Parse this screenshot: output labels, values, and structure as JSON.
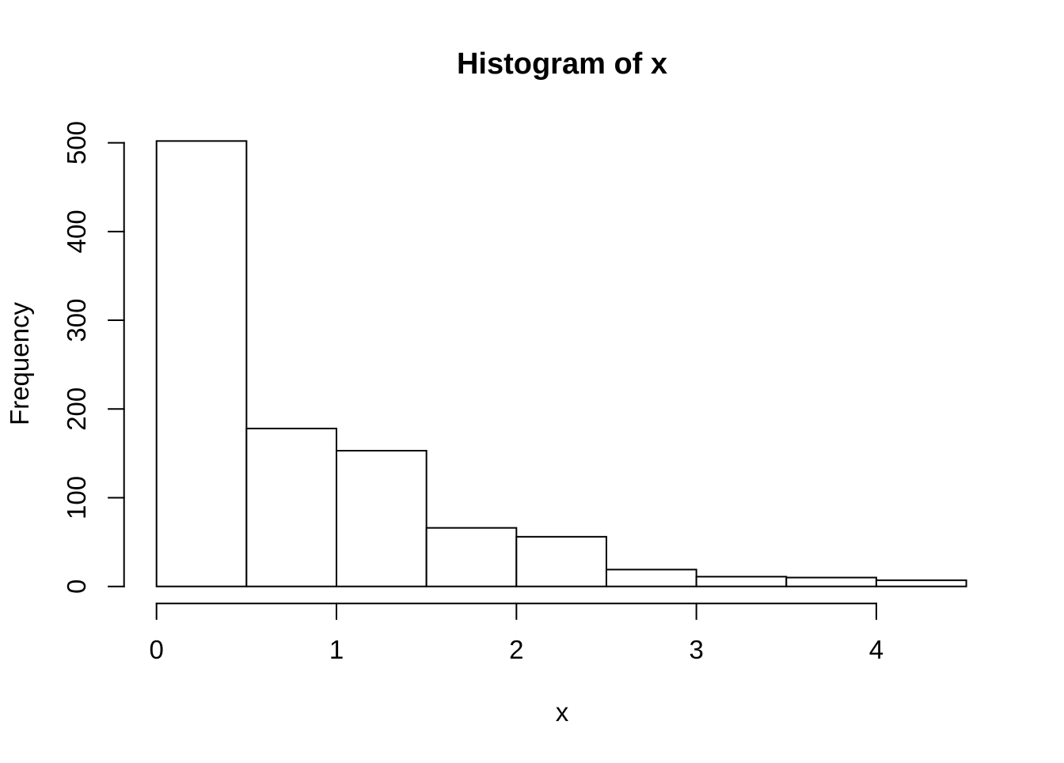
{
  "chart_data": {
    "type": "bar",
    "subtype": "histogram",
    "title": "Histogram of x",
    "xlabel": "x",
    "ylabel": "Frequency",
    "bin_breaks": [
      0,
      0.5,
      1,
      1.5,
      2,
      2.5,
      3,
      3.5,
      4,
      4.5
    ],
    "counts": [
      502,
      178,
      153,
      66,
      56,
      19,
      11,
      10,
      7
    ],
    "x_ticks": [
      0,
      1,
      2,
      3,
      4
    ],
    "y_ticks": [
      0,
      100,
      200,
      300,
      400,
      500
    ],
    "xlim": [
      0,
      4.5
    ],
    "ylim": [
      0,
      500
    ],
    "grid": false,
    "legend": "none",
    "bar_fill": "#ffffff",
    "bar_stroke": "#000000",
    "axis_color": "#000000",
    "background": "#ffffff"
  }
}
